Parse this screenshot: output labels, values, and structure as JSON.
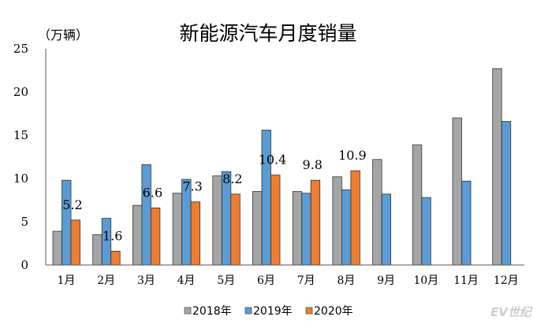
{
  "chart_data": {
    "type": "bar",
    "title": "新能源汽车月度销量",
    "ylabel": "（万辆）",
    "xlabel": "",
    "ylim": [
      0,
      25
    ],
    "yticks": [
      "0",
      "5",
      "10",
      "15",
      "20",
      "25"
    ],
    "grid": false,
    "legend_position": "bottom",
    "categories": [
      "1月",
      "2月",
      "3月",
      "4月",
      "5月",
      "6月",
      "7月",
      "8月",
      "9月",
      "10月",
      "11月",
      "12月"
    ],
    "series": [
      {
        "name": "2018年",
        "color": "#a5a5a5",
        "values": [
          3.9,
          3.5,
          6.9,
          8.3,
          10.3,
          8.5,
          8.5,
          10.2,
          12.2,
          13.9,
          17.0,
          22.7
        ]
      },
      {
        "name": "2019年",
        "color": "#5b9bd5",
        "values": [
          9.8,
          5.4,
          11.6,
          9.9,
          10.8,
          15.6,
          8.3,
          8.7,
          8.2,
          7.8,
          9.7,
          16.6
        ]
      },
      {
        "name": "2020年",
        "color": "#ed7d31",
        "values": [
          5.2,
          1.6,
          6.6,
          7.3,
          8.2,
          10.4,
          9.8,
          10.9,
          null,
          null,
          null,
          null
        ],
        "data_labels": [
          "5.2",
          "1.6",
          "6.6",
          "7.3",
          "8.2",
          "10.4",
          "9.8",
          "10.9"
        ]
      }
    ]
  },
  "watermark": "EV世纪"
}
